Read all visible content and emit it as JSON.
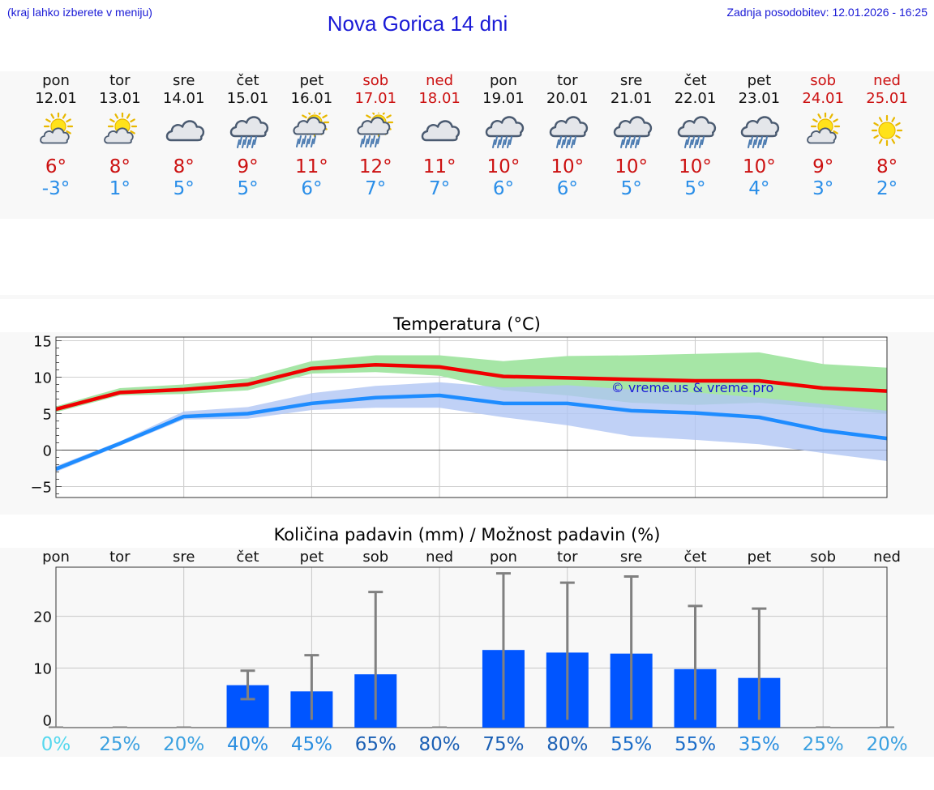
{
  "header": {
    "left_note": "(kraj lahko izberete v meniju)",
    "title": "Nova Gorica 14 dni",
    "updated": "Zadnja posodobitev: 12.01.2026 - 16:25"
  },
  "colors": {
    "tmax_line": "#f00000",
    "tmin_line": "#1e8cff",
    "tmax_band": "#a6e6a6",
    "tmin_band": "#b0c6f4",
    "overlap_band": "#7cc8a8",
    "bar": "#0055ff",
    "whisker": "#808080",
    "weekend_text": "#cc1111"
  },
  "days": [
    {
      "name": "pon",
      "date": "12.01",
      "weekend": false,
      "icon": "partly-cloudy-sun-icon",
      "tmax": "6°",
      "tmin": "-3°"
    },
    {
      "name": "tor",
      "date": "13.01",
      "weekend": false,
      "icon": "partly-cloudy-sun-icon",
      "tmax": "8°",
      "tmin": "1°"
    },
    {
      "name": "sre",
      "date": "14.01",
      "weekend": false,
      "icon": "cloudy-icon",
      "tmax": "8°",
      "tmin": "5°"
    },
    {
      "name": "čet",
      "date": "15.01",
      "weekend": false,
      "icon": "rain-icon",
      "tmax": "9°",
      "tmin": "5°"
    },
    {
      "name": "pet",
      "date": "16.01",
      "weekend": false,
      "icon": "sun-rain-icon",
      "tmax": "11°",
      "tmin": "6°"
    },
    {
      "name": "sob",
      "date": "17.01",
      "weekend": true,
      "icon": "sun-rain-icon",
      "tmax": "12°",
      "tmin": "7°"
    },
    {
      "name": "ned",
      "date": "18.01",
      "weekend": true,
      "icon": "cloudy-icon",
      "tmax": "11°",
      "tmin": "7°"
    },
    {
      "name": "pon",
      "date": "19.01",
      "weekend": false,
      "icon": "rain-icon",
      "tmax": "10°",
      "tmin": "6°"
    },
    {
      "name": "tor",
      "date": "20.01",
      "weekend": false,
      "icon": "rain-icon",
      "tmax": "10°",
      "tmin": "6°"
    },
    {
      "name": "sre",
      "date": "21.01",
      "weekend": false,
      "icon": "rain-icon",
      "tmax": "10°",
      "tmin": "5°"
    },
    {
      "name": "čet",
      "date": "22.01",
      "weekend": false,
      "icon": "rain-icon",
      "tmax": "10°",
      "tmin": "5°"
    },
    {
      "name": "pet",
      "date": "23.01",
      "weekend": false,
      "icon": "rain-icon",
      "tmax": "10°",
      "tmin": "4°"
    },
    {
      "name": "sob",
      "date": "24.01",
      "weekend": true,
      "icon": "partly-cloudy-sun-icon",
      "tmax": "9°",
      "tmin": "3°"
    },
    {
      "name": "ned",
      "date": "25.01",
      "weekend": true,
      "icon": "sun-icon",
      "tmax": "8°",
      "tmin": "2°"
    }
  ],
  "chart_data": [
    {
      "type": "line",
      "title": "Temperatura (°C)",
      "watermark": "© vreme.us & vreme.pro",
      "ylim": [
        -6.5,
        15.5
      ],
      "yticks": [
        -5,
        0,
        5,
        10,
        15
      ],
      "ytick_labels": [
        "−5",
        "0",
        "5",
        "10",
        "15"
      ],
      "x": [
        0,
        1,
        2,
        3,
        4,
        5,
        6,
        7,
        8,
        9,
        10,
        11,
        12,
        13
      ],
      "series": [
        {
          "name": "max",
          "values": [
            5.6,
            7.9,
            8.3,
            9.0,
            11.2,
            11.7,
            11.4,
            10.1,
            9.9,
            9.7,
            9.5,
            9.5,
            8.5,
            8.1
          ]
        },
        {
          "name": "min",
          "values": [
            -2.6,
            0.9,
            4.6,
            5.0,
            6.4,
            7.2,
            7.5,
            6.4,
            6.4,
            5.4,
            5.1,
            4.5,
            2.7,
            1.6
          ]
        }
      ],
      "bands": [
        {
          "name": "max range",
          "low": [
            5.2,
            7.5,
            7.7,
            8.2,
            10.5,
            10.7,
            10.2,
            8.2,
            7.5,
            6.5,
            6.2,
            6.5,
            5.8,
            5.0
          ],
          "high": [
            6.0,
            8.5,
            9.0,
            9.8,
            12.2,
            13.0,
            13.0,
            12.2,
            12.9,
            13.0,
            13.2,
            13.4,
            11.8,
            11.3
          ]
        },
        {
          "name": "min range",
          "low": [
            -3.0,
            0.6,
            4.2,
            4.3,
            5.5,
            5.8,
            5.8,
            4.5,
            3.4,
            1.9,
            1.4,
            0.8,
            -0.4,
            -1.5
          ],
          "high": [
            -2.2,
            1.2,
            5.3,
            5.9,
            7.8,
            8.8,
            9.3,
            8.6,
            8.9,
            8.3,
            7.9,
            7.2,
            6.3,
            5.4
          ]
        }
      ]
    },
    {
      "type": "bar",
      "title": "Količina padavin (mm) / Možnost padavin (%)",
      "ylim": [
        -1.5,
        29.5
      ],
      "yticks": [
        0,
        10,
        20
      ],
      "ytick_labels": [
        "0",
        "10",
        "20"
      ],
      "categories": [
        "pon",
        "tor",
        "sre",
        "čet",
        "pet",
        "sob",
        "ned",
        "pon",
        "tor",
        "sre",
        "čet",
        "pet",
        "sob",
        "ned"
      ],
      "values": [
        0,
        0,
        0,
        6.7,
        5.5,
        8.8,
        0,
        13.5,
        13.0,
        12.8,
        9.8,
        8.1,
        0,
        0
      ],
      "err_low": [
        0,
        0,
        0,
        4.0,
        0,
        0,
        0,
        0,
        0,
        0,
        0,
        0,
        0,
        0
      ],
      "err_high": [
        0,
        0,
        0,
        9.5,
        12.5,
        24.7,
        0,
        28.3,
        26.5,
        27.7,
        22.0,
        21.5,
        0,
        0
      ],
      "probability": [
        "0%",
        "25%",
        "20%",
        "40%",
        "45%",
        "65%",
        "80%",
        "75%",
        "80%",
        "55%",
        "55%",
        "35%",
        "25%",
        "20%"
      ],
      "probability_colors": [
        "#55d8ee",
        "#3aa0e0",
        "#3aa0e0",
        "#2a8ee0",
        "#2a8ee0",
        "#1a5fb4",
        "#1a5fb4",
        "#1a5fb4",
        "#1a5fb4",
        "#1a6cc8",
        "#1a6cc8",
        "#2a8ee0",
        "#3aa0e0",
        "#3aa0e0"
      ]
    }
  ]
}
